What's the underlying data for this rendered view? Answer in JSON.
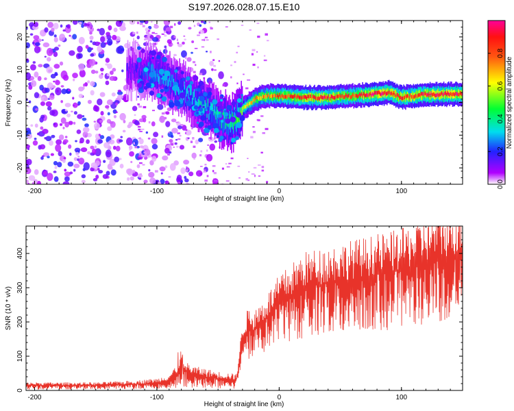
{
  "title": "S197.2026.028.07.15.E10",
  "colors": {
    "snr_line": "#e8332a",
    "axis": "#000000",
    "background": "#ffffff"
  },
  "chart_data": [
    {
      "type": "heatmap",
      "title": "S197.2026.028.07.15.E10",
      "xlabel": "Height of straight line (km)",
      "ylabel": "Frequency (Hz)",
      "xlim": [
        -207,
        150
      ],
      "ylim": [
        -25,
        25
      ],
      "x_ticks": [
        -200,
        -100,
        0,
        100
      ],
      "y_ticks": [
        -20,
        -10,
        0,
        10,
        20
      ],
      "colorbar": {
        "label": "Normalized spectral amplitude",
        "range": [
          0,
          1
        ],
        "ticks": [
          0.0,
          0.2,
          0.4,
          0.6,
          0.8
        ]
      },
      "ridge": {
        "x": [
          -120,
          -105,
          -95,
          -85,
          -75,
          -65,
          -55,
          -45,
          -38,
          -30,
          -20,
          -10,
          0,
          20,
          40,
          60,
          75,
          90,
          100,
          120,
          150
        ],
        "y": [
          10,
          9.5,
          8,
          5,
          2.5,
          0,
          -3,
          -5.5,
          -6,
          -2,
          1,
          2,
          2,
          1.5,
          1.5,
          2,
          2.5,
          3,
          1.5,
          2.5,
          2.5
        ],
        "amplitude": [
          0.15,
          0.25,
          0.3,
          0.3,
          0.3,
          0.35,
          0.35,
          0.4,
          0.45,
          0.55,
          0.7,
          0.75,
          0.8,
          0.85,
          0.85,
          0.8,
          0.9,
          0.9,
          0.85,
          0.9,
          0.9
        ]
      }
    },
    {
      "type": "line",
      "xlabel": "Height of straight line (km)",
      "ylabel": "SNR (10 * v/v)",
      "xlim": [
        -207,
        150
      ],
      "ylim": [
        0,
        480
      ],
      "x_ticks": [
        -200,
        -100,
        0,
        100
      ],
      "y_ticks": [
        0,
        100,
        200,
        300,
        400
      ],
      "envelope": {
        "x": [
          -207,
          -150,
          -120,
          -100,
          -90,
          -80,
          -70,
          -50,
          -35,
          -30,
          -25,
          -20,
          -10,
          0,
          20,
          50,
          75,
          100,
          125,
          150
        ],
        "y": [
          15,
          15,
          18,
          22,
          30,
          60,
          45,
          35,
          30,
          150,
          180,
          175,
          210,
          250,
          300,
          320,
          335,
          350,
          380,
          400
        ]
      }
    }
  ]
}
